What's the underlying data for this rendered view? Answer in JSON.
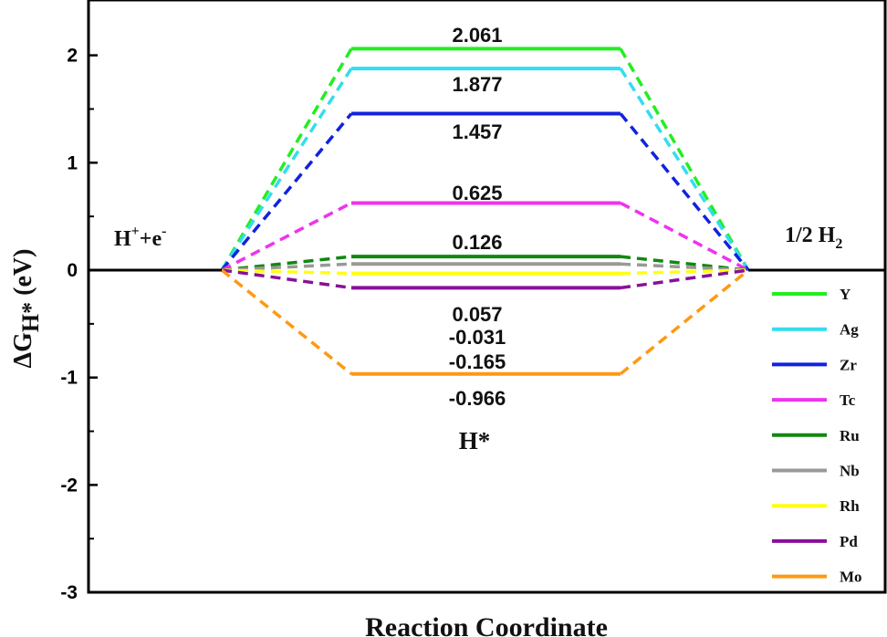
{
  "chart_data": {
    "type": "line",
    "subtype": "energy-level-diagram",
    "xlabel": "Reaction Coordinate",
    "ylabel_main": "ΔG",
    "ylabel_sub": "H*",
    "ylabel_unit": " (eV)",
    "ylim": [
      -3,
      2.35
    ],
    "yticks": [
      {
        "value": 2,
        "label": "2"
      },
      {
        "value": 1,
        "label": "1"
      },
      {
        "value": 0,
        "label": "0"
      },
      {
        "value": -1,
        "label": "-1"
      },
      {
        "value": -2,
        "label": "-2"
      },
      {
        "value": -3,
        "label": "-3"
      }
    ],
    "states": {
      "initial": {
        "base": "H",
        "sup1": "+",
        "mid": "+e",
        "sup2": "-"
      },
      "intermediate": "H*",
      "final": {
        "base": "1/2 H",
        "sub": "2"
      }
    },
    "series": [
      {
        "name": "Y",
        "value": 2.061,
        "label": "2.061",
        "color": "#22ee22"
      },
      {
        "name": "Ag",
        "value": 1.877,
        "label": "1.877",
        "color": "#33ddee"
      },
      {
        "name": "Zr",
        "value": 1.457,
        "label": "1.457",
        "color": "#1122dd"
      },
      {
        "name": "Tc",
        "value": 0.625,
        "label": "0.625",
        "color": "#ee33ee"
      },
      {
        "name": "Ru",
        "value": 0.126,
        "label": "0.126",
        "color": "#118811"
      },
      {
        "name": "Nb",
        "value": 0.057,
        "label": "0.057",
        "color": "#999999"
      },
      {
        "name": "Rh",
        "value": -0.031,
        "label": "-0.031",
        "color": "#ffff11"
      },
      {
        "name": "Pd",
        "value": -0.165,
        "label": "-0.165",
        "color": "#881199"
      },
      {
        "name": "Mo",
        "value": -0.966,
        "label": "-0.966",
        "color": "#ff9911"
      }
    ],
    "grid": false,
    "legend": "right"
  }
}
